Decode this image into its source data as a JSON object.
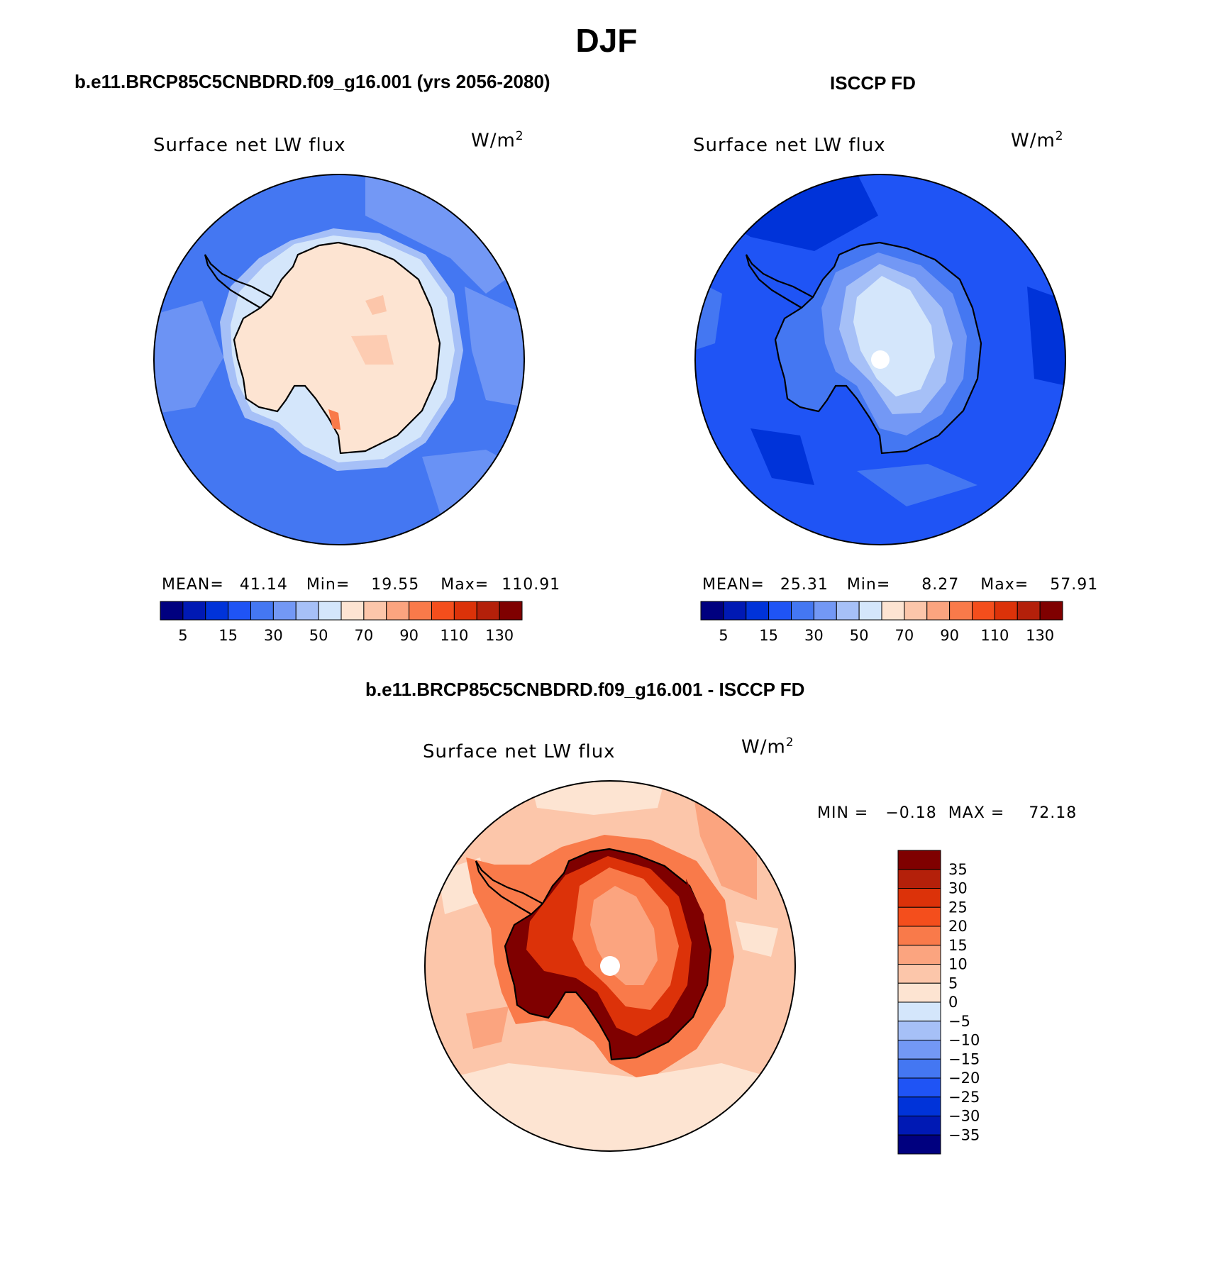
{
  "title": "DJF",
  "left_panel": {
    "case_title": "b.e11.BRCP85C5CNBDRD.f09_g16.001 (yrs 2056-2080)",
    "variable": "Surface net LW flux",
    "units": "W/m",
    "units_sup": "2",
    "stats": {
      "mean_label": "MEAN=",
      "mean": "41.14",
      "min_label": "Min=",
      "min": "19.55",
      "max_label": "Max=",
      "max": "110.91"
    }
  },
  "right_panel": {
    "case_title": "ISCCP FD",
    "variable": "Surface net LW flux",
    "units": "W/m",
    "units_sup": "2",
    "stats": {
      "mean_label": "MEAN=",
      "mean": "25.31",
      "min_label": "Min=",
      "min": "8.27",
      "max_label": "Max=",
      "max": "57.91"
    }
  },
  "abs_colorbar": {
    "colors": [
      "#00007f",
      "#0019b4",
      "#0033d9",
      "#1f54f5",
      "#4477f2",
      "#7398f5",
      "#a6c0f7",
      "#d4e6fb",
      "#fde4d2",
      "#fcc6aa",
      "#fba47f",
      "#f97a4a",
      "#f44e1c",
      "#dc3209",
      "#b4200a",
      "#7f0000"
    ],
    "tick_labels": [
      "5",
      "15",
      "30",
      "50",
      "70",
      "90",
      "110",
      "130"
    ]
  },
  "diff_panel": {
    "case_title": "b.e11.BRCP85C5CNBDRD.f09_g16.001 - ISCCP FD",
    "variable": "Surface net LW flux",
    "units": "W/m",
    "units_sup": "2",
    "min_label": "MIN =",
    "min": "−0.18",
    "max_label": "MAX =",
    "max": "72.18"
  },
  "diff_colorbar": {
    "colors_top_to_bottom": [
      "#7f0000",
      "#b4200a",
      "#dc3209",
      "#f44e1c",
      "#f97a4a",
      "#fba47f",
      "#fcc6aa",
      "#fde4d2",
      "#d4e6fb",
      "#a6c0f7",
      "#7398f5",
      "#4477f2",
      "#1f54f5",
      "#0033d9",
      "#0019b4",
      "#00007f"
    ],
    "tick_labels": [
      "35",
      "30",
      "25",
      "20",
      "15",
      "10",
      "5",
      "0",
      "−5",
      "−10",
      "−15",
      "−20",
      "−25",
      "−30",
      "−35"
    ]
  },
  "field_colors": {
    "left_ocean": "#4477f2",
    "left_ocean_light": "#7398f5",
    "left_land": "#fde4d2",
    "right_ocean": "#1f54f5",
    "right_ocean_dark": "#0033d9",
    "right_land": "#a6c0f7",
    "right_land_center": "#d4e6fb",
    "diff_ocean": "#fcc6aa",
    "diff_ocean_light": "#fde4d2",
    "diff_land": "#b4200a",
    "diff_land_center": "#fba47f"
  }
}
